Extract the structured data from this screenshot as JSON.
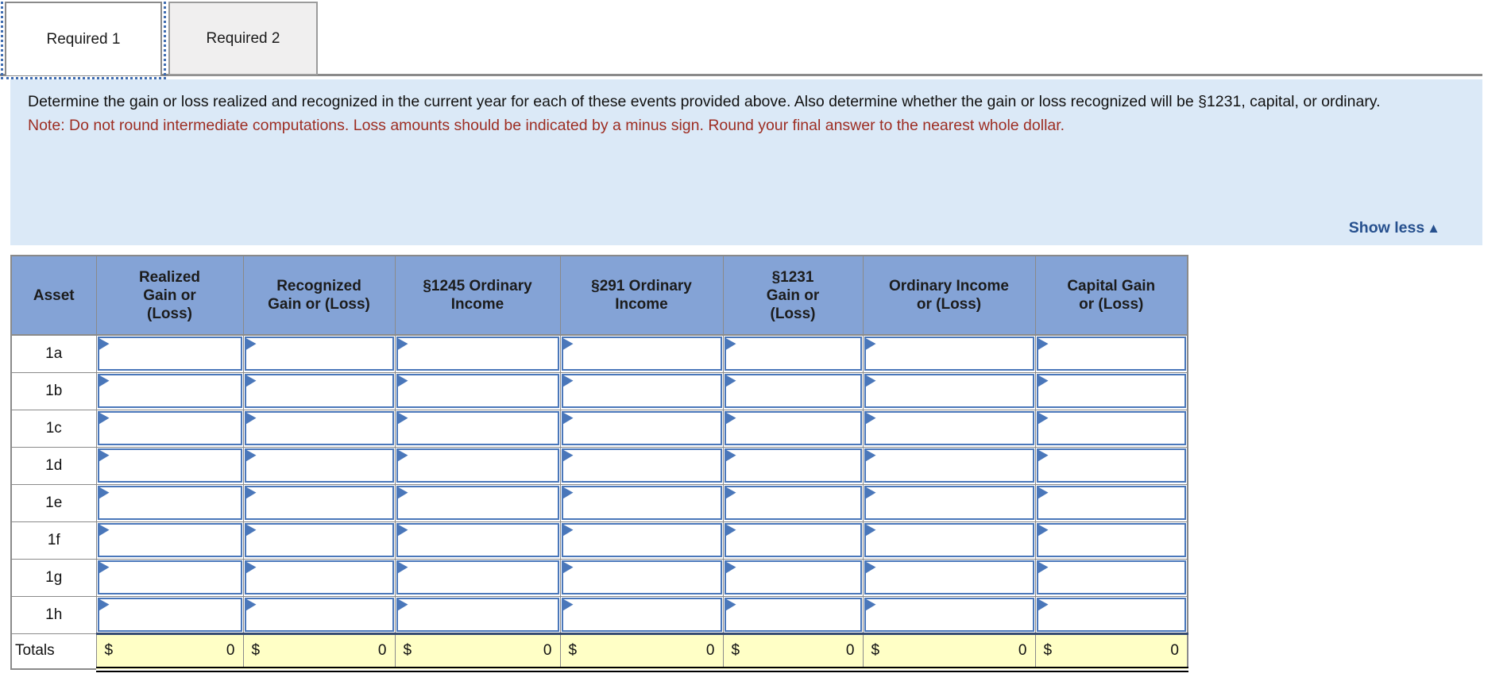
{
  "tabs": [
    {
      "label": "Required 1",
      "active": true
    },
    {
      "label": "Required 2",
      "active": false
    }
  ],
  "instructions": {
    "main": "Determine the gain or loss realized and recognized in the current year for each of these events provided above. Also determine whether the gain or loss recognized will be §1231, capital, or ordinary.",
    "note": "Note: Do not round intermediate computations. Loss amounts should be indicated by a minus sign. Round your final answer to the nearest whole dollar.",
    "show_less_label": "Show less",
    "show_less_icon": "▲"
  },
  "table": {
    "columns": [
      "Asset",
      "Realized\nGain or\n(Loss)",
      "Recognized\nGain or (Loss)",
      "§1245 Ordinary\nIncome",
      "§291 Ordinary\nIncome",
      "§1231\nGain or\n(Loss)",
      "Ordinary Income\nor (Loss)",
      "Capital Gain\nor (Loss)"
    ],
    "rows": [
      {
        "label": "1a"
      },
      {
        "label": "1b"
      },
      {
        "label": "1c"
      },
      {
        "label": "1d"
      },
      {
        "label": "1e"
      },
      {
        "label": "1f"
      },
      {
        "label": "1g"
      },
      {
        "label": "1h"
      }
    ],
    "row_input_count": 7,
    "totals": {
      "label": "Totals",
      "cells": [
        {
          "currency": "$",
          "value": "0"
        },
        {
          "currency": "$",
          "value": "0"
        },
        {
          "currency": "$",
          "value": "0"
        },
        {
          "currency": "$",
          "value": "0"
        },
        {
          "currency": "$",
          "value": "0"
        },
        {
          "currency": "$",
          "value": "0"
        },
        {
          "currency": "$",
          "value": "0"
        }
      ]
    }
  },
  "colors": {
    "header_bg": "#84a3d6",
    "input_border": "#4a77ba",
    "totals_bg": "#ffffc6",
    "panel_bg": "#dbe9f7",
    "note_red": "#9d2d22",
    "link_blue": "#26508e",
    "grid_gray": "#8a8a8a",
    "focus_outline": "#3f6cb0"
  }
}
